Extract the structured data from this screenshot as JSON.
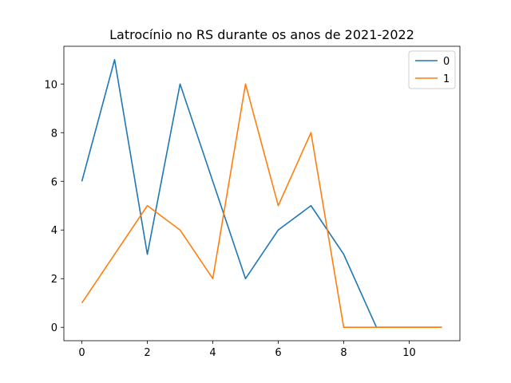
{
  "chart_data": {
    "type": "line",
    "title": "Latrocínio no RS durante os anos de 2021-2022",
    "xlabel": "",
    "ylabel": "",
    "x": [
      0,
      1,
      2,
      3,
      4,
      5,
      6,
      7,
      8,
      9,
      10,
      11
    ],
    "series": [
      {
        "name": "0",
        "color": "#1f77b4",
        "values": [
          6,
          11,
          3,
          10,
          6,
          2,
          4,
          5,
          3,
          0,
          0,
          0
        ]
      },
      {
        "name": "1",
        "color": "#ff7f0e",
        "values": [
          1,
          3,
          5,
          4,
          2,
          10,
          5,
          8,
          0,
          0,
          0,
          0
        ]
      }
    ],
    "xlim": [
      -0.55,
      11.55
    ],
    "ylim": [
      -0.55,
      11.55
    ],
    "xticks": [
      0,
      2,
      4,
      6,
      8,
      10
    ],
    "yticks": [
      0,
      2,
      4,
      6,
      8,
      10
    ],
    "legend_position": "top-right",
    "grid": false
  }
}
